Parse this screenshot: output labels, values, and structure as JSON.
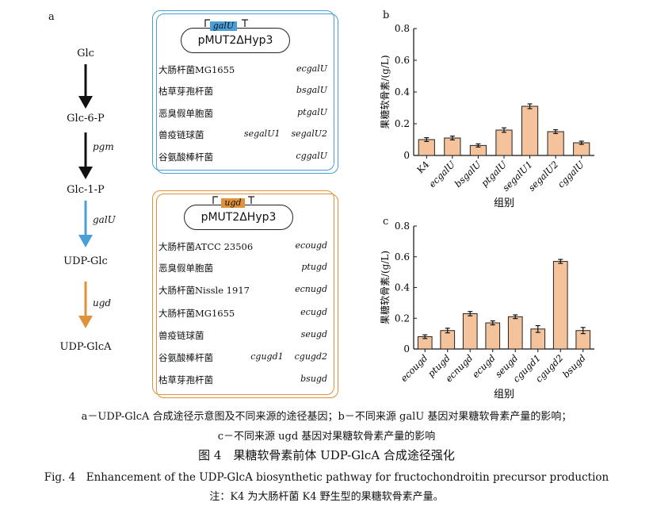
{
  "panel_a": {
    "letter": "a",
    "metabolites": [
      "Glc",
      "Glc-6-P",
      "Glc-1-P",
      "UDP-Glc",
      "UDP-GlcA"
    ],
    "enzymes": [
      "pgm",
      "galU",
      "ugd"
    ],
    "colors": {
      "blue": "#4a9fd8",
      "orange": "#e0923a",
      "black": "#111111"
    },
    "box1": {
      "gene_tag": "galU",
      "plasmid": "pMUT2ΔHyp3",
      "rows": [
        {
          "organism": "大肠杆菌MG1655",
          "gene": "ecgalU"
        },
        {
          "organism": "枯草芽孢杆菌",
          "gene": "bsgalU"
        },
        {
          "organism": "恶臭假单胞菌",
          "gene": "ptgalU"
        },
        {
          "organism": "兽疫链球菌",
          "gene": "segalU1    segalU2"
        },
        {
          "organism": "谷氨酸棒杆菌",
          "gene": "cggalU"
        }
      ]
    },
    "box2": {
      "gene_tag": "ugd",
      "plasmid": "pMUT2ΔHyp3",
      "rows": [
        {
          "organism": "大肠杆菌ATCC 23506",
          "gene": "ecougd"
        },
        {
          "organism": "恶臭假单胞菌",
          "gene": "ptugd"
        },
        {
          "organism": "大肠杆菌Nissle 1917",
          "gene": "ecnugd"
        },
        {
          "organism": "大肠杆菌MG1655",
          "gene": "ecugd"
        },
        {
          "organism": "兽疫链球菌",
          "gene": "seugd"
        },
        {
          "organism": "谷氨酸棒杆菌",
          "gene": "cgugd1    cgugd2"
        },
        {
          "organism": "枯草芽孢杆菌",
          "gene": "bsugd"
        }
      ]
    }
  },
  "chart_data": [
    {
      "panel": "b",
      "type": "bar",
      "categories": [
        "K4",
        "ecgalU",
        "bsgalU",
        "ptgalU",
        "segalU1",
        "segalU2",
        "cggalU"
      ],
      "values": [
        0.1,
        0.11,
        0.063,
        0.16,
        0.31,
        0.15,
        0.08
      ],
      "errors": [
        0.012,
        0.012,
        0.01,
        0.014,
        0.015,
        0.012,
        0.01
      ],
      "ylabel": "果糖软骨素/(g/L)",
      "xlabel": "组别",
      "ylim": [
        0,
        0.8
      ],
      "yticks": [
        "0",
        "0.2",
        "0.4",
        "0.6",
        "0.8"
      ],
      "bar_color": "#f4c39b"
    },
    {
      "panel": "c",
      "type": "bar",
      "categories": [
        "ecougd",
        "ptugd",
        "ecnugd",
        "ecugd",
        "seugd",
        "cgugd1",
        "cgugd2",
        "bsugd"
      ],
      "values": [
        0.08,
        0.12,
        0.23,
        0.17,
        0.21,
        0.13,
        0.57,
        0.12
      ],
      "errors": [
        0.012,
        0.015,
        0.014,
        0.013,
        0.012,
        0.022,
        0.013,
        0.02
      ],
      "ylabel": "果糖软骨素/(g/L)",
      "xlabel": "组别",
      "ylim": [
        0,
        0.8
      ],
      "yticks": [
        "0",
        "0.2",
        "0.4",
        "0.6",
        "0.8"
      ],
      "bar_color": "#f4c39b"
    }
  ],
  "captions": {
    "line1": "a－UDP-GlcA 合成途径示意图及不同来源的途径基因；b－不同来源 galU 基因对果糖软骨素产量的影响；",
    "line2": "c－不同来源 ugd 基因对果糖软骨素产量的影响",
    "title_cn": "图 4　果糖软骨素前体 UDP-GlcA 合成途径强化",
    "title_en": "Fig. 4　Enhancement of the UDP-GlcA biosynthetic pathway for fructochondroitin precursor production",
    "note": "注：K4 为大肠杆菌 K4 野生型的果糖软骨素产量。"
  }
}
